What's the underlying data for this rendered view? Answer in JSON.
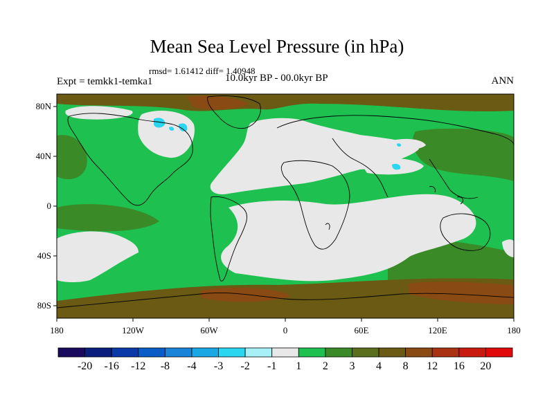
{
  "title": "Mean Sea Level Pressure (in hPa)",
  "subtitle": "rmsd= 1.61412  diff= 1.40948",
  "experiment": "Expt = temkk1-temka1",
  "period": "10.0kyr BP - 00.0kyr BP",
  "season": "ANN",
  "lat_labels": [
    "80N",
    "40N",
    "0",
    "40S",
    "80S"
  ],
  "lon_labels": [
    "180",
    "120W",
    "60W",
    "0",
    "60E",
    "120E",
    "180"
  ],
  "colorbar": {
    "colors": [
      "#1a0a5e",
      "#0a1e7e",
      "#0a3aa8",
      "#0a5cc6",
      "#1a84d8",
      "#1aa8e4",
      "#2ad6f0",
      "#a8f0f8",
      "#e8e8e8",
      "#1ec050",
      "#3a8a28",
      "#5a6e1e",
      "#6a5a14",
      "#8a4a14",
      "#a83212",
      "#c81a0e",
      "#e00a0a"
    ],
    "labels": [
      "-20",
      "-16",
      "-12",
      "-8",
      "-4",
      "-3",
      "-2",
      "-1",
      "1",
      "2",
      "3",
      "4",
      "8",
      "12",
      "16",
      "20"
    ]
  },
  "map_colors": {
    "ocean_base": "#1ec050",
    "neutral": "#e8e8e8",
    "mid": "#3a8a28",
    "brown": "#6a5a14",
    "darkbrown": "#8a4a14",
    "cyan": "#2ad6f0",
    "blue": "#1aa8e4",
    "coast": "#000000"
  }
}
